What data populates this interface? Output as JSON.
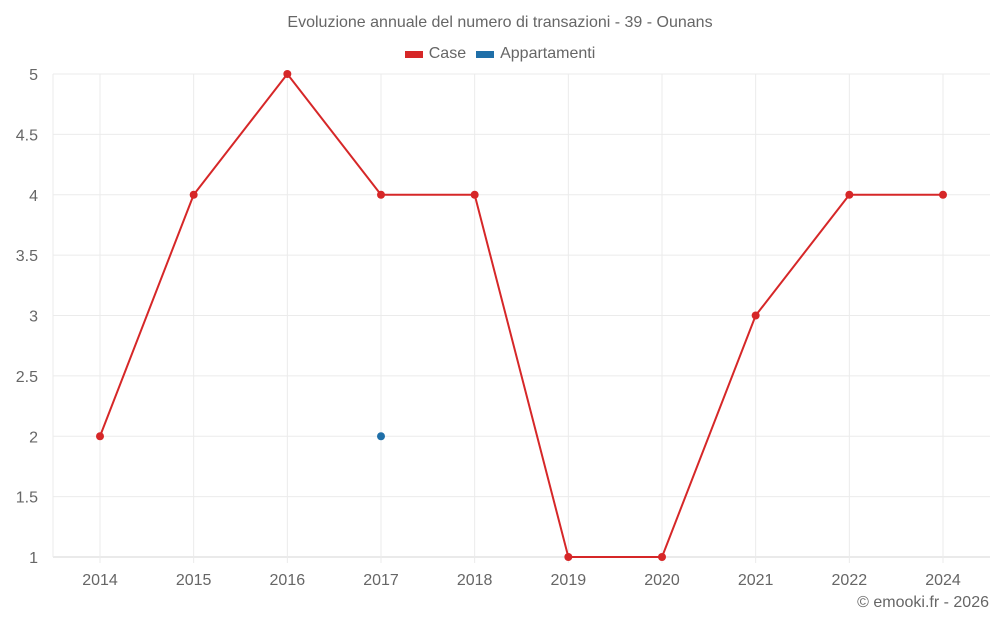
{
  "title": "Evoluzione annuale del numero di transazioni - 39 - Ounans",
  "legend": [
    {
      "label": "Case",
      "color": "#d62728"
    },
    {
      "label": "Appartamenti",
      "color": "#1f6fa8"
    }
  ],
  "credit": "© emooki.fr - 2026",
  "chart_data": {
    "type": "line",
    "title": "Evoluzione annuale del numero di transazioni - 39 - Ounans",
    "xlabel": "",
    "ylabel": "",
    "categories": [
      "2014",
      "2015",
      "2016",
      "2017",
      "2018",
      "2019",
      "2020",
      "2021",
      "2022",
      "2024"
    ],
    "series": [
      {
        "name": "Case",
        "color": "#d62728",
        "values": [
          2,
          4,
          5,
          4,
          4,
          1,
          1,
          3,
          4,
          4
        ]
      },
      {
        "name": "Appartamenti",
        "color": "#1f6fa8",
        "values": [
          null,
          null,
          null,
          2,
          null,
          null,
          null,
          null,
          null,
          null
        ]
      }
    ],
    "yticks": [
      "1",
      "1.5",
      "2",
      "2.5",
      "3",
      "3.5",
      "4",
      "4.5",
      "5"
    ],
    "ylim": [
      1,
      5
    ],
    "grid": true,
    "legend_position": "top"
  }
}
